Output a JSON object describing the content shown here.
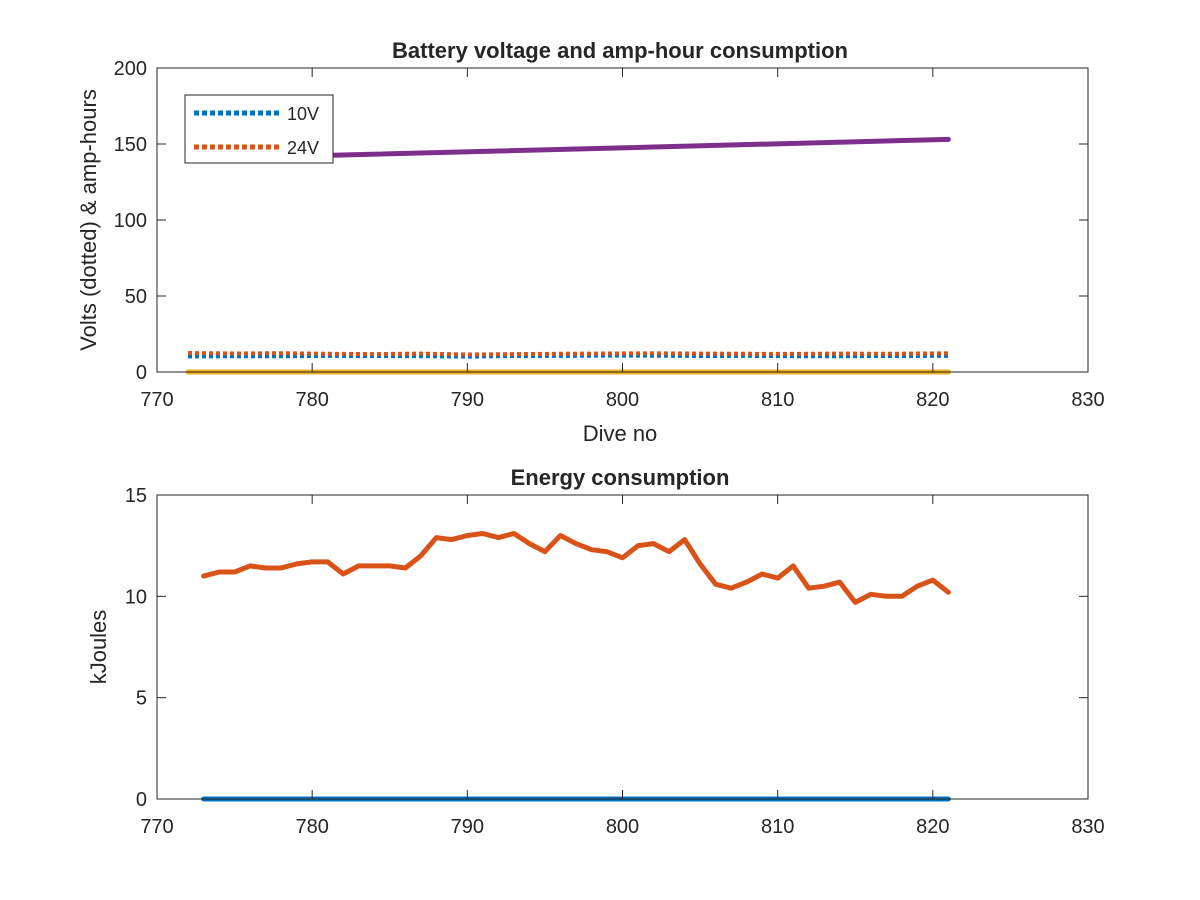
{
  "chart_data": [
    {
      "type": "line",
      "title": "Battery voltage and amp-hour consumption",
      "xlabel": "Dive no",
      "ylabel": "Volts (dotted) & amp-hours",
      "xlim": [
        770,
        830
      ],
      "ylim": [
        0,
        200
      ],
      "xticks": [
        770,
        780,
        790,
        800,
        810,
        820,
        830
      ],
      "yticks": [
        0,
        50,
        100,
        150,
        200
      ],
      "grid": false,
      "legend_position": "top-left",
      "series": [
        {
          "name": "10V",
          "style": "dotted",
          "color": "#0072BD",
          "x": [
            772,
            775,
            778,
            781,
            784,
            787,
            790,
            793,
            796,
            799,
            802,
            805,
            808,
            811,
            814,
            817,
            821
          ],
          "values": [
            10.2,
            10.4,
            10.3,
            10.6,
            10.5,
            10.4,
            10.1,
            10.5,
            10.6,
            10.8,
            10.7,
            10.5,
            10.6,
            10.4,
            10.3,
            10.5,
            10.6
          ]
        },
        {
          "name": "24V",
          "style": "dotted",
          "color": "#D95319",
          "x": [
            772,
            775,
            778,
            781,
            784,
            787,
            790,
            793,
            796,
            799,
            802,
            805,
            808,
            811,
            814,
            817,
            821
          ],
          "values": [
            12.5,
            12.2,
            12.4,
            12.0,
            11.8,
            12.1,
            11.5,
            11.8,
            12.0,
            12.2,
            12.3,
            12.1,
            12.0,
            11.9,
            12.1,
            12.0,
            12.3
          ]
        },
        {
          "style": "solid",
          "color": "#7E2F8E",
          "x": [
            781,
            821
          ],
          "values": [
            142.5,
            153
          ]
        },
        {
          "style": "solid",
          "color": "#EDB120",
          "x": [
            772,
            821
          ],
          "values": [
            0,
            0
          ]
        }
      ]
    },
    {
      "type": "line",
      "title": "Energy consumption",
      "xlabel": "",
      "ylabel": "kJoules",
      "xlim": [
        770,
        830
      ],
      "ylim": [
        0,
        15
      ],
      "xticks": [
        770,
        780,
        790,
        800,
        810,
        820,
        830
      ],
      "yticks": [
        0,
        5,
        10,
        15
      ],
      "grid": false,
      "series": [
        {
          "style": "solid",
          "color": "#D95319",
          "x": [
            773,
            774,
            775,
            776,
            777,
            778,
            779,
            780,
            781,
            782,
            783,
            784,
            785,
            786,
            787,
            788,
            789,
            790,
            791,
            792,
            793,
            794,
            795,
            796,
            797,
            798,
            799,
            800,
            801,
            802,
            803,
            804,
            805,
            806,
            807,
            808,
            809,
            810,
            811,
            812,
            813,
            814,
            815,
            816,
            817,
            818,
            819,
            820,
            821
          ],
          "values": [
            11.0,
            11.2,
            11.2,
            11.5,
            11.4,
            11.4,
            11.6,
            11.7,
            11.7,
            11.1,
            11.5,
            11.5,
            11.5,
            11.4,
            12.0,
            12.9,
            12.8,
            13.0,
            13.1,
            12.9,
            13.1,
            12.6,
            12.2,
            13.0,
            12.6,
            12.3,
            12.2,
            11.9,
            12.5,
            12.6,
            12.2,
            12.8,
            11.6,
            10.6,
            10.4,
            10.7,
            11.1,
            10.9,
            11.5,
            10.4,
            10.5,
            10.7,
            9.7,
            10.1,
            10.0,
            10.0,
            10.5,
            10.8,
            10.2
          ]
        },
        {
          "style": "solid",
          "color": "#0072BD",
          "x": [
            773,
            821
          ],
          "values": [
            0,
            0
          ]
        }
      ]
    }
  ]
}
